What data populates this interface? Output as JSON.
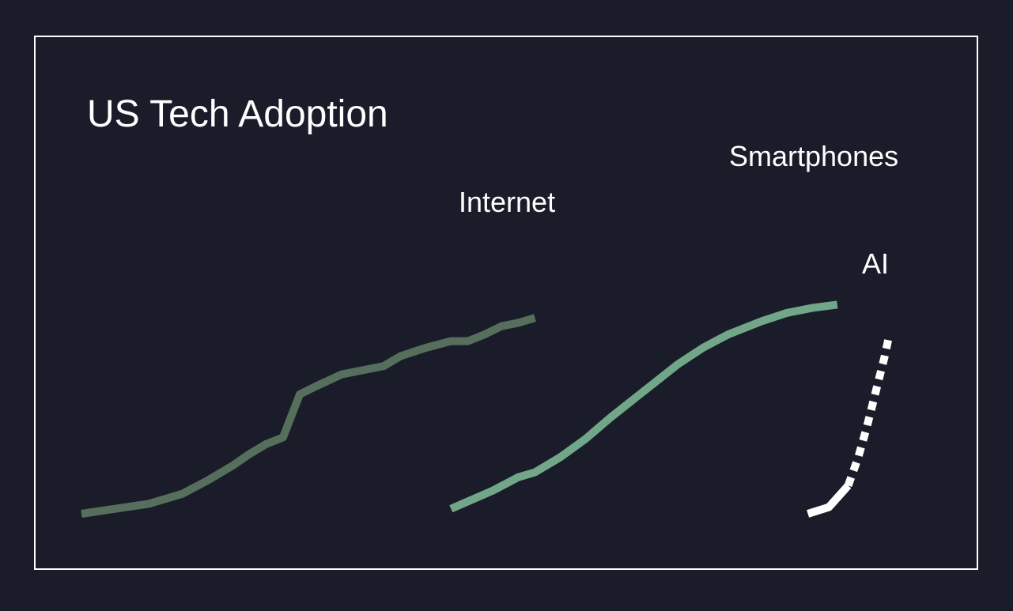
{
  "colors": {
    "background": "#1a1c2a",
    "frame": "#ffffff",
    "internet": "#566f5c",
    "smartphones": "#72a689",
    "ai": "#ffffff",
    "text": "#ffffff"
  },
  "chart_data": {
    "type": "line",
    "title": "US Tech Adoption",
    "xlabel": "",
    "ylabel": "",
    "grid": false,
    "legend": "none",
    "xlim": [
      0,
      100
    ],
    "ylim": [
      0,
      100
    ],
    "series": [
      {
        "name": "Internet",
        "style": "solid",
        "points": [
          [
            0,
            0
          ],
          [
            4,
            1.5
          ],
          [
            8,
            3
          ],
          [
            12,
            6
          ],
          [
            15,
            10
          ],
          [
            18,
            14.5
          ],
          [
            20,
            18
          ],
          [
            22,
            21
          ],
          [
            24,
            23
          ],
          [
            26,
            36
          ],
          [
            28,
            38.5
          ],
          [
            31,
            42
          ],
          [
            33,
            43
          ],
          [
            36,
            44.5
          ],
          [
            38,
            47.5
          ],
          [
            41,
            50
          ],
          [
            44,
            52
          ],
          [
            46,
            52
          ],
          [
            48,
            54
          ],
          [
            50,
            56.5
          ],
          [
            52,
            57.5
          ],
          [
            54,
            59
          ]
        ]
      },
      {
        "name": "Smartphones",
        "style": "solid",
        "points": [
          [
            44,
            1.5
          ],
          [
            49,
            7
          ],
          [
            52,
            11
          ],
          [
            54,
            12.5
          ],
          [
            57,
            17
          ],
          [
            60,
            22.5
          ],
          [
            63,
            29
          ],
          [
            66,
            35
          ],
          [
            68,
            39
          ],
          [
            71,
            45
          ],
          [
            74,
            50
          ],
          [
            77,
            54
          ],
          [
            81,
            58
          ],
          [
            84,
            60.5
          ],
          [
            87,
            62
          ],
          [
            90,
            63
          ]
        ]
      },
      {
        "name": "AI",
        "style": "solid",
        "points": [
          [
            86.5,
            0
          ],
          [
            89,
            2
          ],
          [
            91.3,
            8.5
          ]
        ]
      },
      {
        "name": "",
        "style": "dashed",
        "points": [
          [
            91.3,
            8.5
          ],
          [
            92.5,
            17
          ],
          [
            93.5,
            26
          ],
          [
            94.3,
            34
          ],
          [
            95,
            41
          ],
          [
            95.6,
            47
          ],
          [
            96.2,
            54
          ]
        ]
      }
    ]
  }
}
